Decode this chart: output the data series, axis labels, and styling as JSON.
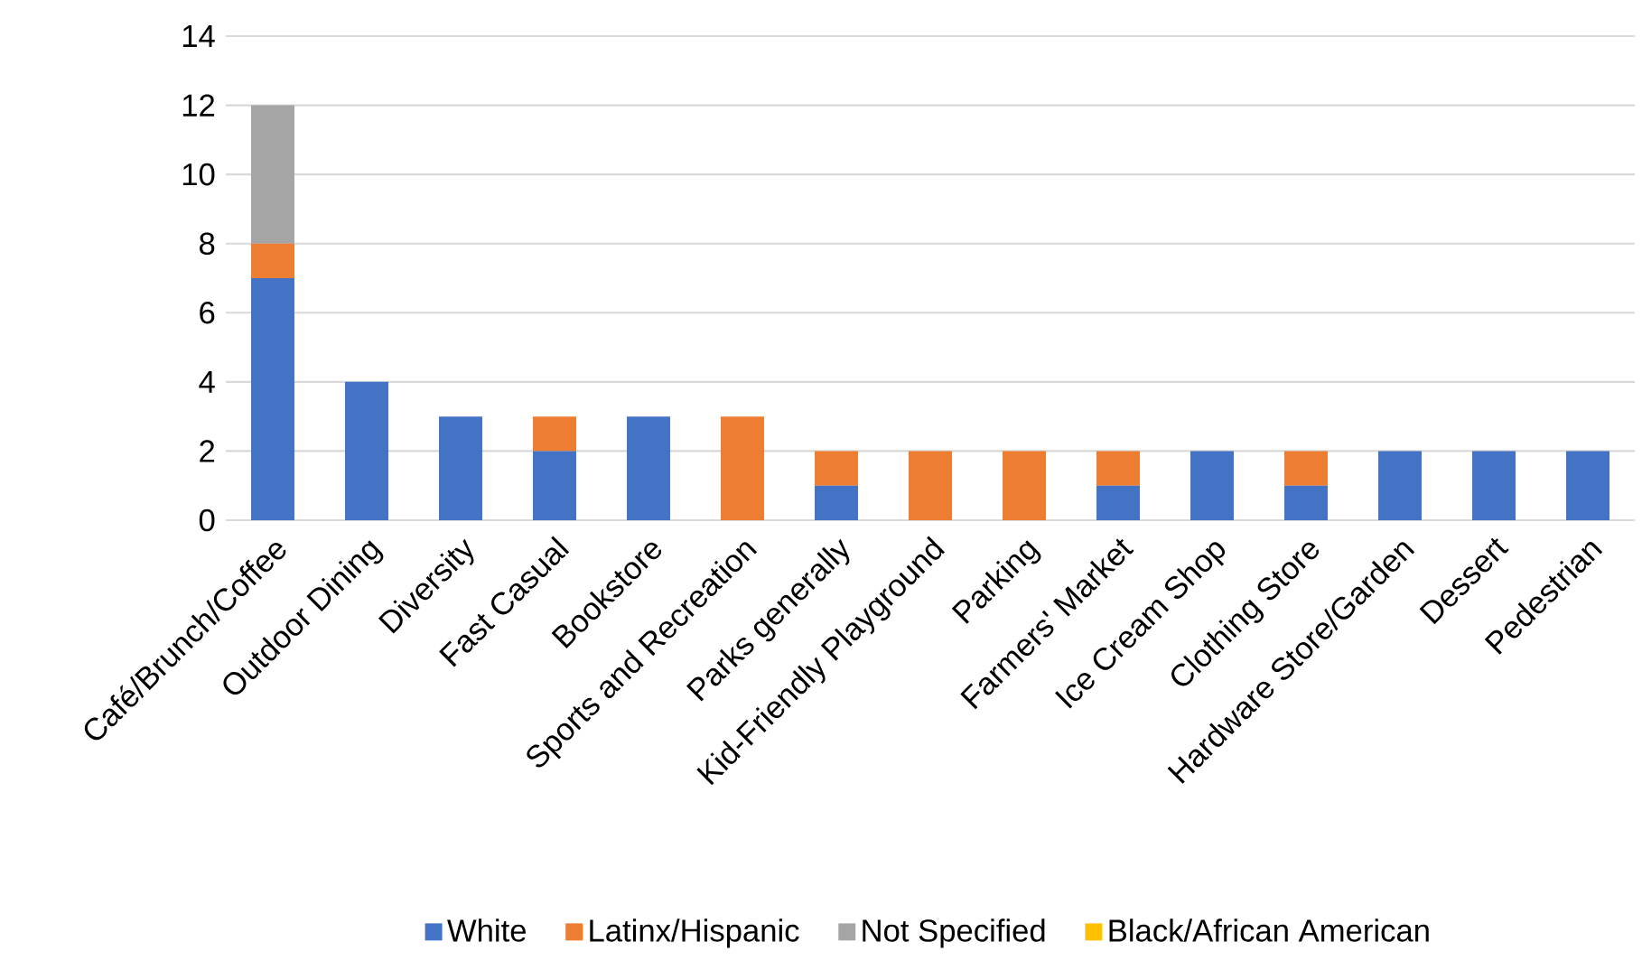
{
  "chart_data": {
    "type": "bar",
    "stacked": true,
    "categories": [
      "Café/Brunch/Coffee",
      "Outdoor Dining",
      "Diversity",
      "Fast Casual",
      "Bookstore",
      "Sports and Recreation",
      "Parks generally",
      "Kid-Friendly Playground",
      "Parking",
      "Farmers' Market",
      "Ice Cream Shop",
      "Clothing Store",
      "Hardware Store/Garden",
      "Dessert",
      "Pedestrian"
    ],
    "series": [
      {
        "name": "White",
        "color": "#4472c4",
        "values": [
          7,
          4,
          3,
          2,
          3,
          0,
          1,
          0,
          0,
          1,
          2,
          1,
          2,
          2,
          2
        ]
      },
      {
        "name": "Latinx/Hispanic",
        "color": "#ed7d31",
        "values": [
          1,
          0,
          0,
          1,
          0,
          3,
          1,
          2,
          2,
          1,
          0,
          1,
          0,
          0,
          0
        ]
      },
      {
        "name": "Not Specified",
        "color": "#a5a5a5",
        "values": [
          4,
          0,
          0,
          0,
          0,
          0,
          0,
          0,
          0,
          0,
          0,
          0,
          0,
          0,
          0
        ]
      },
      {
        "name": "Black/African American",
        "color": "#ffc000",
        "values": [
          0,
          0,
          0,
          0,
          0,
          0,
          0,
          0,
          0,
          0,
          0,
          0,
          0,
          0,
          0
        ]
      }
    ],
    "ylim": [
      0,
      14
    ],
    "yticks": [
      0,
      2,
      4,
      6,
      8,
      10,
      12,
      14
    ],
    "grid": "y",
    "legend": "bottom"
  }
}
